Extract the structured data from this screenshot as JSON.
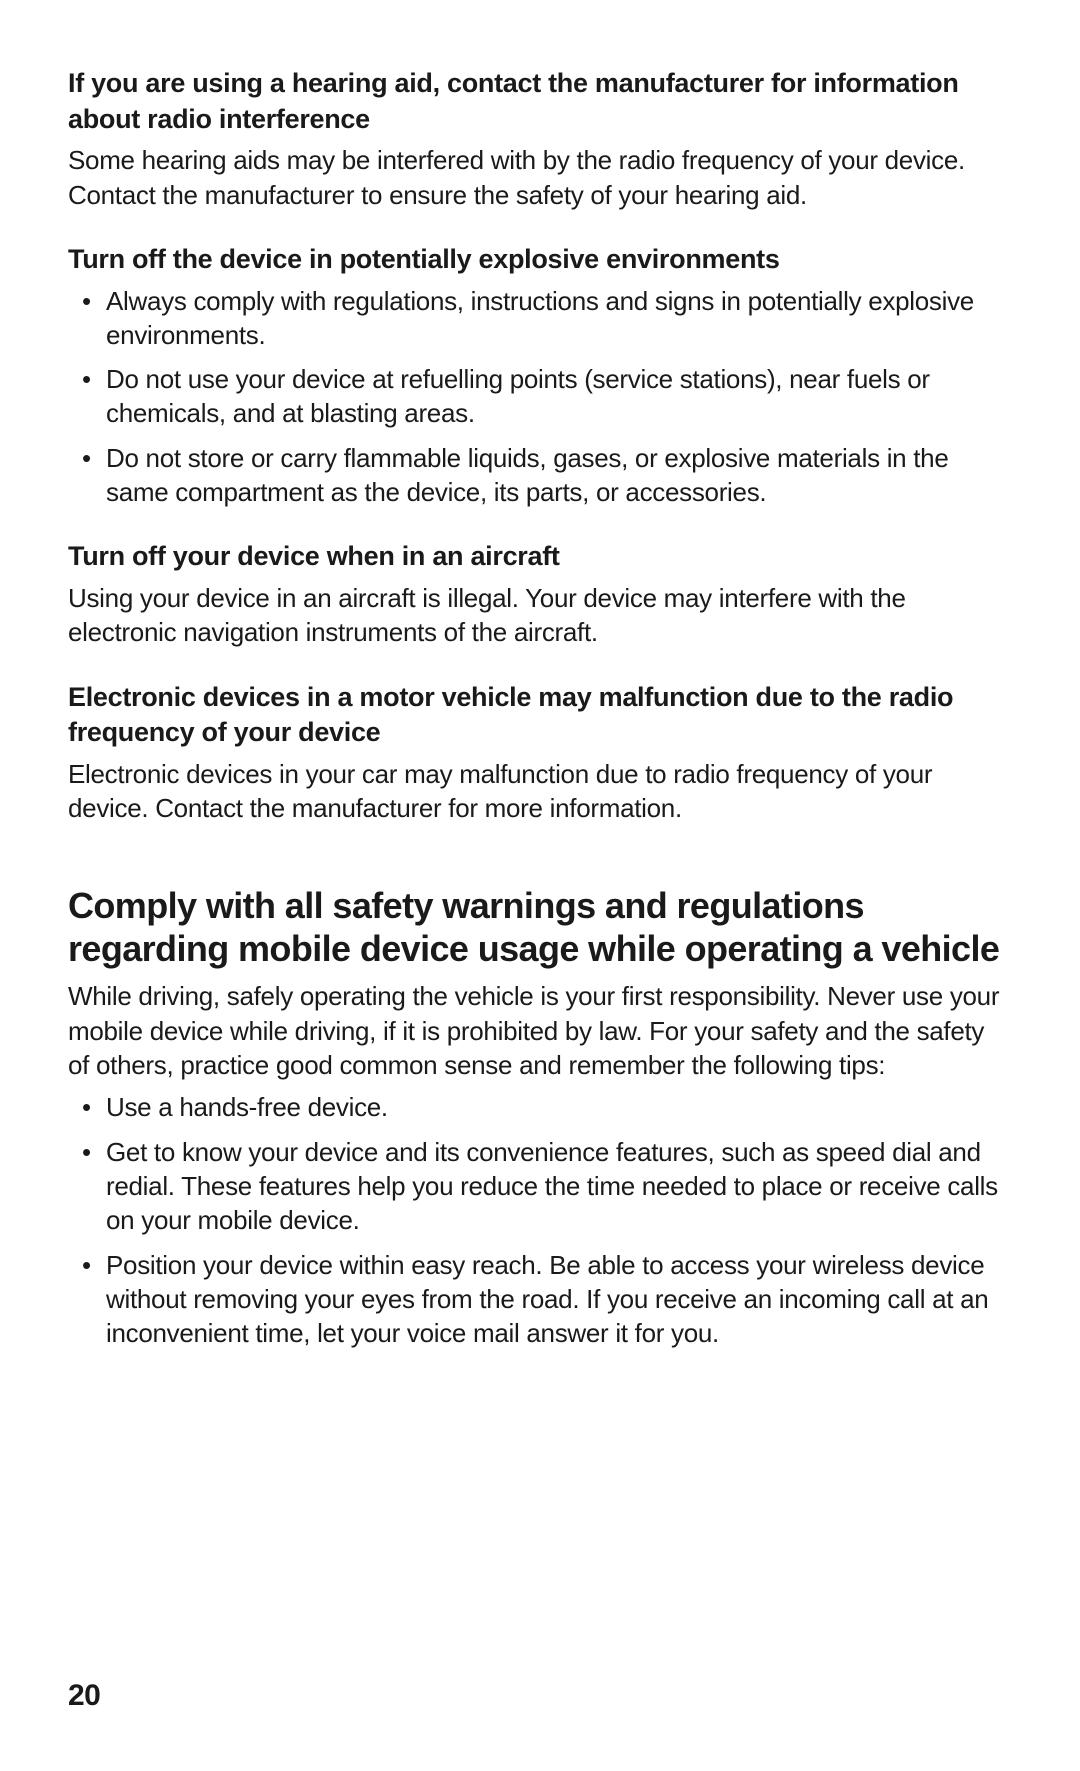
{
  "section1": {
    "heading": "If you are using a hearing aid, contact the manufacturer for information about radio interference",
    "body": "Some hearing aids may be interfered with by the radio frequency of your device. Contact the manufacturer to ensure the safety of your hearing aid."
  },
  "section2": {
    "heading": "Turn off the device in potentially explosive environments",
    "items": [
      "Always comply with regulations, instructions and signs in potentially explosive environments.",
      "Do not use your device at refuelling points (service stations), near fuels or chemicals, and at blasting areas.",
      "Do not store or carry flammable liquids, gases, or explosive materials in the same compartment as the device, its parts, or accessories."
    ]
  },
  "section3": {
    "heading": "Turn off your device when in an aircraft",
    "body": "Using your device in an aircraft is illegal. Your device may interfere with the electronic navigation instruments of the aircraft."
  },
  "section4": {
    "heading": "Electronic devices in a motor vehicle may malfunction due to the radio frequency of your device",
    "body": "Electronic devices in your car may malfunction due to radio frequency of your device. Contact the manufacturer for more information."
  },
  "section5": {
    "heading": "Comply with all safety warnings and regulations regarding mobile device usage while operating a vehicle",
    "body": "While driving, safely operating the vehicle is your first responsibility. Never use your mobile device while driving, if it is prohibited by law. For your safety and the safety of others, practice good common sense and remember the following tips:",
    "items": [
      "Use a hands-free device.",
      "Get to know your device and its convenience features, such as speed dial and redial. These features help you reduce the time needed to place or receive calls on your mobile device.",
      "Position your device within easy reach. Be able to access your wireless device without removing your eyes from the road. If you receive an incoming call at an inconvenient time, let your voice mail answer it for you."
    ]
  },
  "page_number": "20"
}
